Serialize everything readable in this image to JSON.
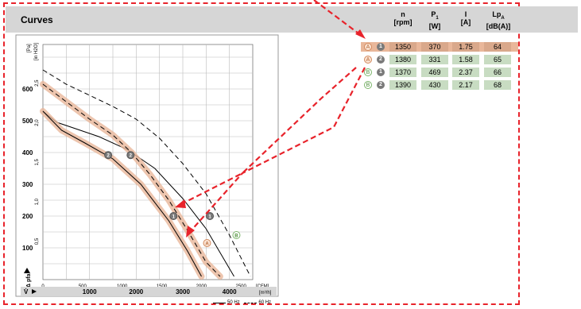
{
  "header": {
    "title": "Curves"
  },
  "table": {
    "columns": [
      {
        "name": "n",
        "unit": "[rpm]"
      },
      {
        "name": "P1",
        "unit": "[W]"
      },
      {
        "name": "I",
        "unit": "[A]"
      },
      {
        "name": "LpA",
        "unit": "[dB(A)]"
      }
    ],
    "rows": [
      {
        "curve": "A",
        "point": "1",
        "n": "1350",
        "p1": "370",
        "i": "1.75",
        "lpa": "64",
        "highlight": true
      },
      {
        "curve": "A",
        "point": "2",
        "n": "1380",
        "p1": "331",
        "i": "1.58",
        "lpa": "65",
        "highlight": false
      },
      {
        "curve": "B",
        "point": "1",
        "n": "1370",
        "p1": "469",
        "i": "2.37",
        "lpa": "66",
        "highlight": false
      },
      {
        "curve": "B",
        "point": "2",
        "n": "1390",
        "p1": "430",
        "i": "2.17",
        "lpa": "68",
        "highlight": false
      }
    ]
  },
  "legend": {
    "solid": "50 Hz",
    "dashed": "60 Hz"
  },
  "colors": {
    "annotation": "#e8232b",
    "highlight": "#e9b79a",
    "cell": "#c8dcc2",
    "badge": "#7a7a7a"
  },
  "chart_data": {
    "type": "line",
    "ylabel_left": "Δ pfa",
    "unit_pa": "[Pa]",
    "unit_inh2o": "[in H2O]",
    "xlabel": "V̇",
    "unit_m3h": "[m³/h]",
    "unit_cfm": "[CFM]",
    "xlim_m3h": [
      0,
      4500
    ],
    "ylim_pa": [
      0,
      740
    ],
    "grid": true,
    "xticks_m3h": [
      "1000",
      "2000",
      "3000",
      "4000"
    ],
    "xticks_cfm": [
      "0",
      "500",
      "1000",
      "1500",
      "2000",
      "2500"
    ],
    "yticks_pa": [
      "100",
      "200",
      "300",
      "400",
      "500",
      "600"
    ],
    "yticks_inh2o": [
      "0,5",
      "1,0",
      "1,5",
      "2,0",
      "2,5"
    ],
    "series": [
      {
        "name": "50 Hz",
        "style": "solid",
        "x": [
          0,
          300,
          700,
          1200,
          1800,
          2400,
          3000,
          3500,
          4100
        ],
        "y": [
          530,
          495,
          475,
          450,
          410,
          350,
          255,
          160,
          10
        ]
      },
      {
        "name": "60 Hz",
        "style": "dashed",
        "x": [
          0,
          500,
          1000,
          1500,
          2000,
          2500,
          3000,
          3500,
          4000,
          4450
        ],
        "y": [
          660,
          615,
          580,
          545,
          505,
          445,
          365,
          270,
          140,
          10
        ]
      },
      {
        "name": "A 50 Hz",
        "style": "solid",
        "band": true,
        "x": [
          0,
          400,
          900,
          1500,
          2100,
          2700,
          3100,
          3400
        ],
        "y": [
          530,
          470,
          430,
          380,
          300,
          185,
          90,
          10
        ]
      },
      {
        "name": "A 60 Hz",
        "style": "dashed",
        "band": true,
        "x": [
          0,
          500,
          1000,
          1500,
          1900,
          2300,
          2700,
          3100,
          3500,
          3800
        ],
        "y": [
          615,
          560,
          505,
          455,
          400,
          330,
          250,
          155,
          55,
          10
        ]
      }
    ],
    "points": [
      {
        "label": "2",
        "x": 1400,
        "y": 392,
        "kind": "num"
      },
      {
        "label": "2",
        "x": 1880,
        "y": 392,
        "kind": "num"
      },
      {
        "label": "1",
        "x": 2800,
        "y": 200,
        "kind": "num"
      },
      {
        "label": "1",
        "x": 3580,
        "y": 200,
        "kind": "num"
      },
      {
        "label": "A",
        "x": 3520,
        "y": 115,
        "kind": "A"
      },
      {
        "label": "B",
        "x": 4150,
        "y": 140,
        "kind": "B"
      }
    ]
  }
}
